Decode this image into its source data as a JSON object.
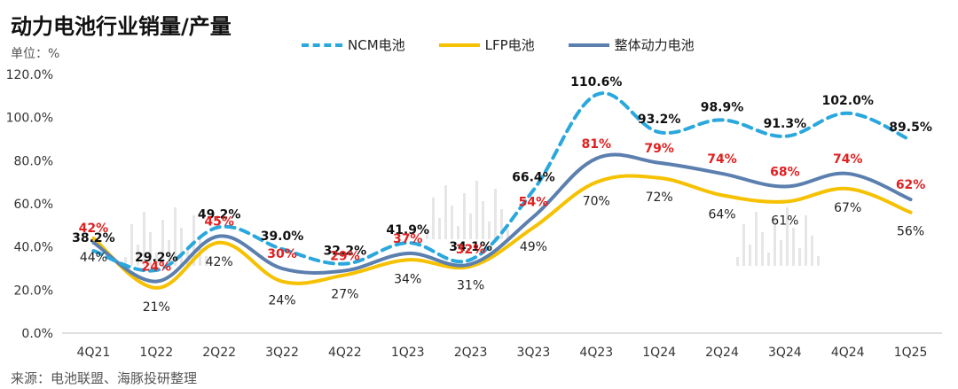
{
  "title": "动力电池行业销量/产量",
  "unit": "单位：%",
  "source": "来源：电池联盟、海豚投研整理",
  "colors": {
    "ncm": "#2aa7dd",
    "lfp": "#f5c100",
    "total": "#5b7fae",
    "total_label": "#e02020"
  },
  "chart_data": {
    "type": "line",
    "categories": [
      "4Q21",
      "1Q22",
      "2Q22",
      "3Q22",
      "4Q22",
      "1Q23",
      "2Q23",
      "3Q23",
      "4Q23",
      "1Q24",
      "2Q24",
      "3Q24",
      "4Q24",
      "1Q25"
    ],
    "ylim": [
      0,
      120
    ],
    "yticks": [
      "0.0%",
      "20.0%",
      "40.0%",
      "60.0%",
      "80.0%",
      "100.0%",
      "120.0%"
    ],
    "legend_position": "top",
    "series": [
      {
        "key": "ncm",
        "name": "NCM电池",
        "style": "dashed",
        "values": [
          38.2,
          29.2,
          49.2,
          39.0,
          32.2,
          41.9,
          34.1,
          66.4,
          110.6,
          93.2,
          98.9,
          91.3,
          102.0,
          89.5
        ],
        "labels": [
          "38.2%",
          "29.2%",
          "49.2%",
          "39.0%",
          "32.2%",
          "41.9%",
          "34.1%",
          "66.4%",
          "110.6%",
          "93.2%",
          "98.9%",
          "91.3%",
          "102.0%",
          "89.5%"
        ]
      },
      {
        "key": "lfp",
        "name": "LFP电池",
        "style": "solid",
        "values": [
          44,
          21,
          42,
          24,
          27,
          34,
          31,
          49,
          70,
          72,
          64,
          61,
          67,
          56
        ],
        "labels": [
          "44%",
          "21%",
          "42%",
          "24%",
          "27%",
          "34%",
          "31%",
          "49%",
          "70%",
          "72%",
          "64%",
          "61%",
          "67%",
          "56%"
        ]
      },
      {
        "key": "total",
        "name": "整体动力电池",
        "style": "solid",
        "values": [
          42,
          24,
          45,
          30,
          29,
          37,
          32,
          54,
          81,
          79,
          74,
          68,
          74,
          62
        ],
        "labels": [
          "42%",
          "24%",
          "45%",
          "30%",
          "29%",
          "37%",
          "32%",
          "54%",
          "81%",
          "79%",
          "74%",
          "68%",
          "74%",
          "62%"
        ]
      }
    ]
  }
}
